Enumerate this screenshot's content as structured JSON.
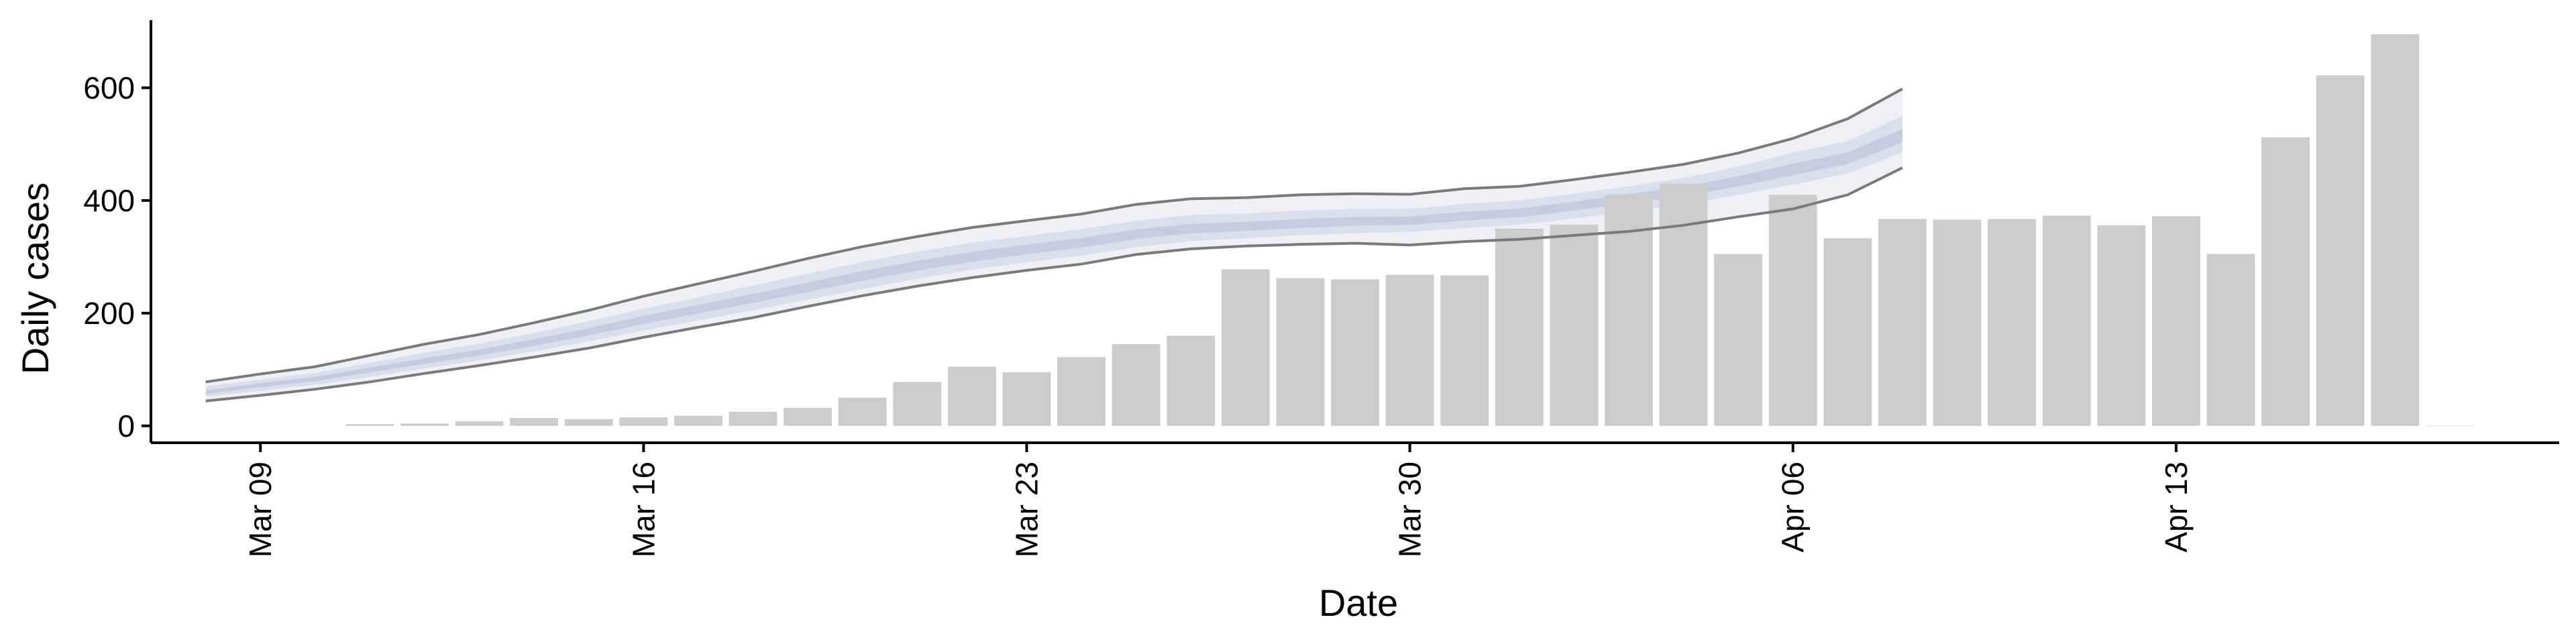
{
  "chart_data": {
    "type": "bar",
    "xlabel": "Date",
    "ylabel": "Daily cases",
    "ylim": [
      -30,
      720
    ],
    "y_ticks": [
      0,
      200,
      400,
      600
    ],
    "x_range": [
      "2020-03-07",
      "2020-04-20"
    ],
    "x_ticks": [
      {
        "date": "2020-03-09",
        "label": "Mar 09"
      },
      {
        "date": "2020-03-16",
        "label": "Mar 16"
      },
      {
        "date": "2020-03-23",
        "label": "Mar 23"
      },
      {
        "date": "2020-03-30",
        "label": "Mar 30"
      },
      {
        "date": "2020-04-06",
        "label": "Apr 06"
      },
      {
        "date": "2020-04-13",
        "label": "Apr 13"
      }
    ],
    "bars": {
      "color": "#cccccc",
      "dates": [
        "2020-03-11",
        "2020-03-12",
        "2020-03-13",
        "2020-03-14",
        "2020-03-15",
        "2020-03-16",
        "2020-03-17",
        "2020-03-18",
        "2020-03-19",
        "2020-03-20",
        "2020-03-21",
        "2020-03-22",
        "2020-03-23",
        "2020-03-24",
        "2020-03-25",
        "2020-03-26",
        "2020-03-27",
        "2020-03-28",
        "2020-03-29",
        "2020-03-30",
        "2020-03-31",
        "2020-04-01",
        "2020-04-02",
        "2020-04-03",
        "2020-04-04",
        "2020-04-05",
        "2020-04-06",
        "2020-04-07",
        "2020-04-08",
        "2020-04-09",
        "2020-04-10",
        "2020-04-11",
        "2020-04-12",
        "2020-04-13",
        "2020-04-14",
        "2020-04-15",
        "2020-04-16",
        "2020-04-17",
        "2020-04-18"
      ],
      "values": [
        3,
        4,
        8,
        14,
        12,
        15,
        18,
        25,
        32,
        50,
        78,
        105,
        95,
        122,
        145,
        160,
        278,
        262,
        260,
        268,
        267,
        350,
        357,
        410,
        430,
        305,
        410,
        333,
        367,
        366,
        367,
        373,
        356,
        372,
        305,
        512,
        622,
        695,
        0
      ]
    },
    "forecast": {
      "dates": [
        "2020-03-08",
        "2020-03-09",
        "2020-03-10",
        "2020-03-11",
        "2020-03-12",
        "2020-03-13",
        "2020-03-14",
        "2020-03-15",
        "2020-03-16",
        "2020-03-17",
        "2020-03-18",
        "2020-03-19",
        "2020-03-20",
        "2020-03-21",
        "2020-03-22",
        "2020-03-23",
        "2020-03-24",
        "2020-03-25",
        "2020-03-26",
        "2020-03-27",
        "2020-03-28",
        "2020-03-29",
        "2020-03-30",
        "2020-03-31",
        "2020-04-01",
        "2020-04-02",
        "2020-04-03",
        "2020-04-04",
        "2020-04-05",
        "2020-04-06",
        "2020-04-07",
        "2020-04-08"
      ],
      "upper": [
        78,
        92,
        105,
        125,
        145,
        162,
        183,
        205,
        230,
        252,
        274,
        297,
        318,
        336,
        352,
        364,
        376,
        393,
        403,
        405,
        410,
        412,
        411,
        421,
        425,
        437,
        450,
        464,
        484,
        510,
        545,
        598
      ],
      "upper_inner": [
        70,
        82,
        94,
        112,
        130,
        146,
        165,
        186,
        208,
        228,
        249,
        270,
        291,
        309,
        325,
        337,
        349,
        364,
        374,
        377,
        382,
        385,
        385,
        394,
        400,
        412,
        425,
        440,
        460,
        485,
        505,
        550
      ],
      "median": [
        60,
        72,
        83,
        99,
        115,
        130,
        148,
        167,
        188,
        207,
        226,
        246,
        266,
        284,
        300,
        313,
        325,
        340,
        350,
        354,
        359,
        363,
        364,
        372,
        378,
        390,
        403,
        416,
        434,
        455,
        475,
        515
      ],
      "lower_inner": [
        52,
        62,
        73,
        87,
        102,
        116,
        132,
        150,
        169,
        187,
        205,
        224,
        243,
        261,
        277,
        290,
        302,
        317,
        328,
        333,
        338,
        342,
        344,
        351,
        357,
        368,
        380,
        393,
        410,
        428,
        448,
        485
      ],
      "lower": [
        44,
        54,
        65,
        78,
        93,
        107,
        122,
        138,
        157,
        175,
        192,
        212,
        231,
        248,
        263,
        276,
        287,
        304,
        314,
        319,
        322,
        324,
        321,
        327,
        331,
        338,
        345,
        356,
        371,
        385,
        410,
        458
      ]
    },
    "colors": {
      "outer_band": "#eef0f6",
      "inner_band": "#dadfec",
      "median_band": "#c6cce0",
      "bound_line": "#7a7a7a",
      "axis": "#000000"
    },
    "grid": false,
    "legend": "none"
  }
}
